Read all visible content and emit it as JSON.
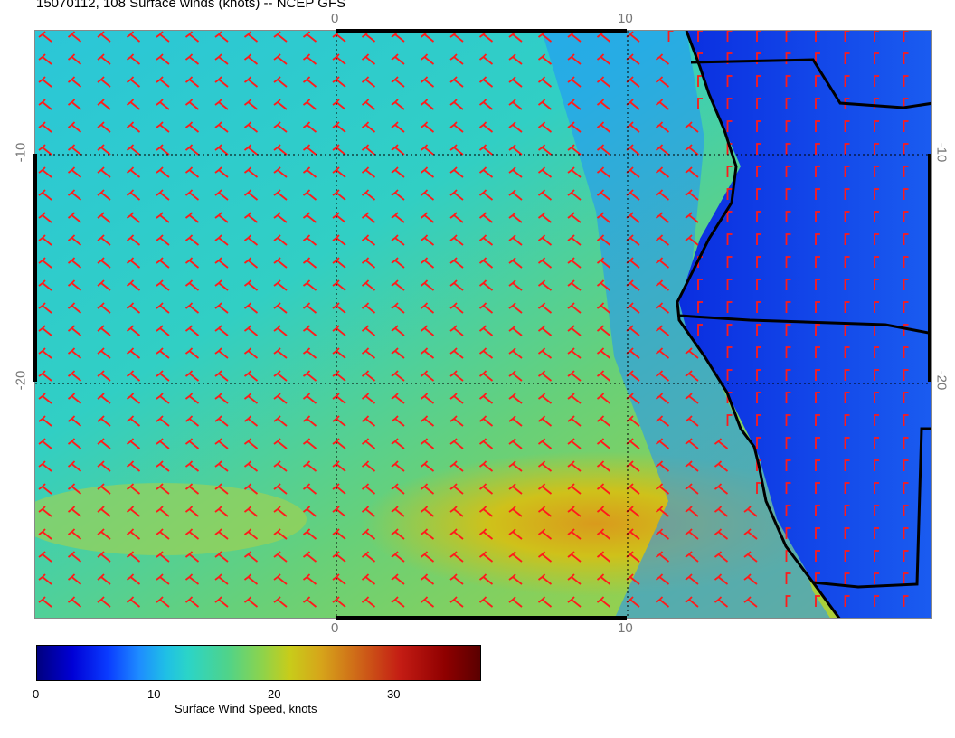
{
  "title": "15070112, 108 Surface winds (knots) -- NCEP GFS",
  "axes": {
    "top_ticks": [
      "0",
      "10"
    ],
    "bottom_ticks": [
      "0",
      "10"
    ],
    "left_ticks": [
      "-10",
      "-20"
    ],
    "right_ticks": [
      "-10",
      "-20"
    ]
  },
  "colorbar": {
    "label": "Surface Wind Speed, knots",
    "ticks": [
      "0",
      "10",
      "20",
      "30"
    ],
    "range": [
      0,
      37
    ]
  },
  "colors": {
    "barb": "#ff1a1a",
    "coast": "#000000",
    "ocean_strong": "#c8cc1a",
    "land_calm": "#0a3cff"
  },
  "layers": {
    "field": "Surface Wind Speed, knots",
    "wind_barbs": true,
    "coastline": true,
    "graticule": "dotted"
  }
}
